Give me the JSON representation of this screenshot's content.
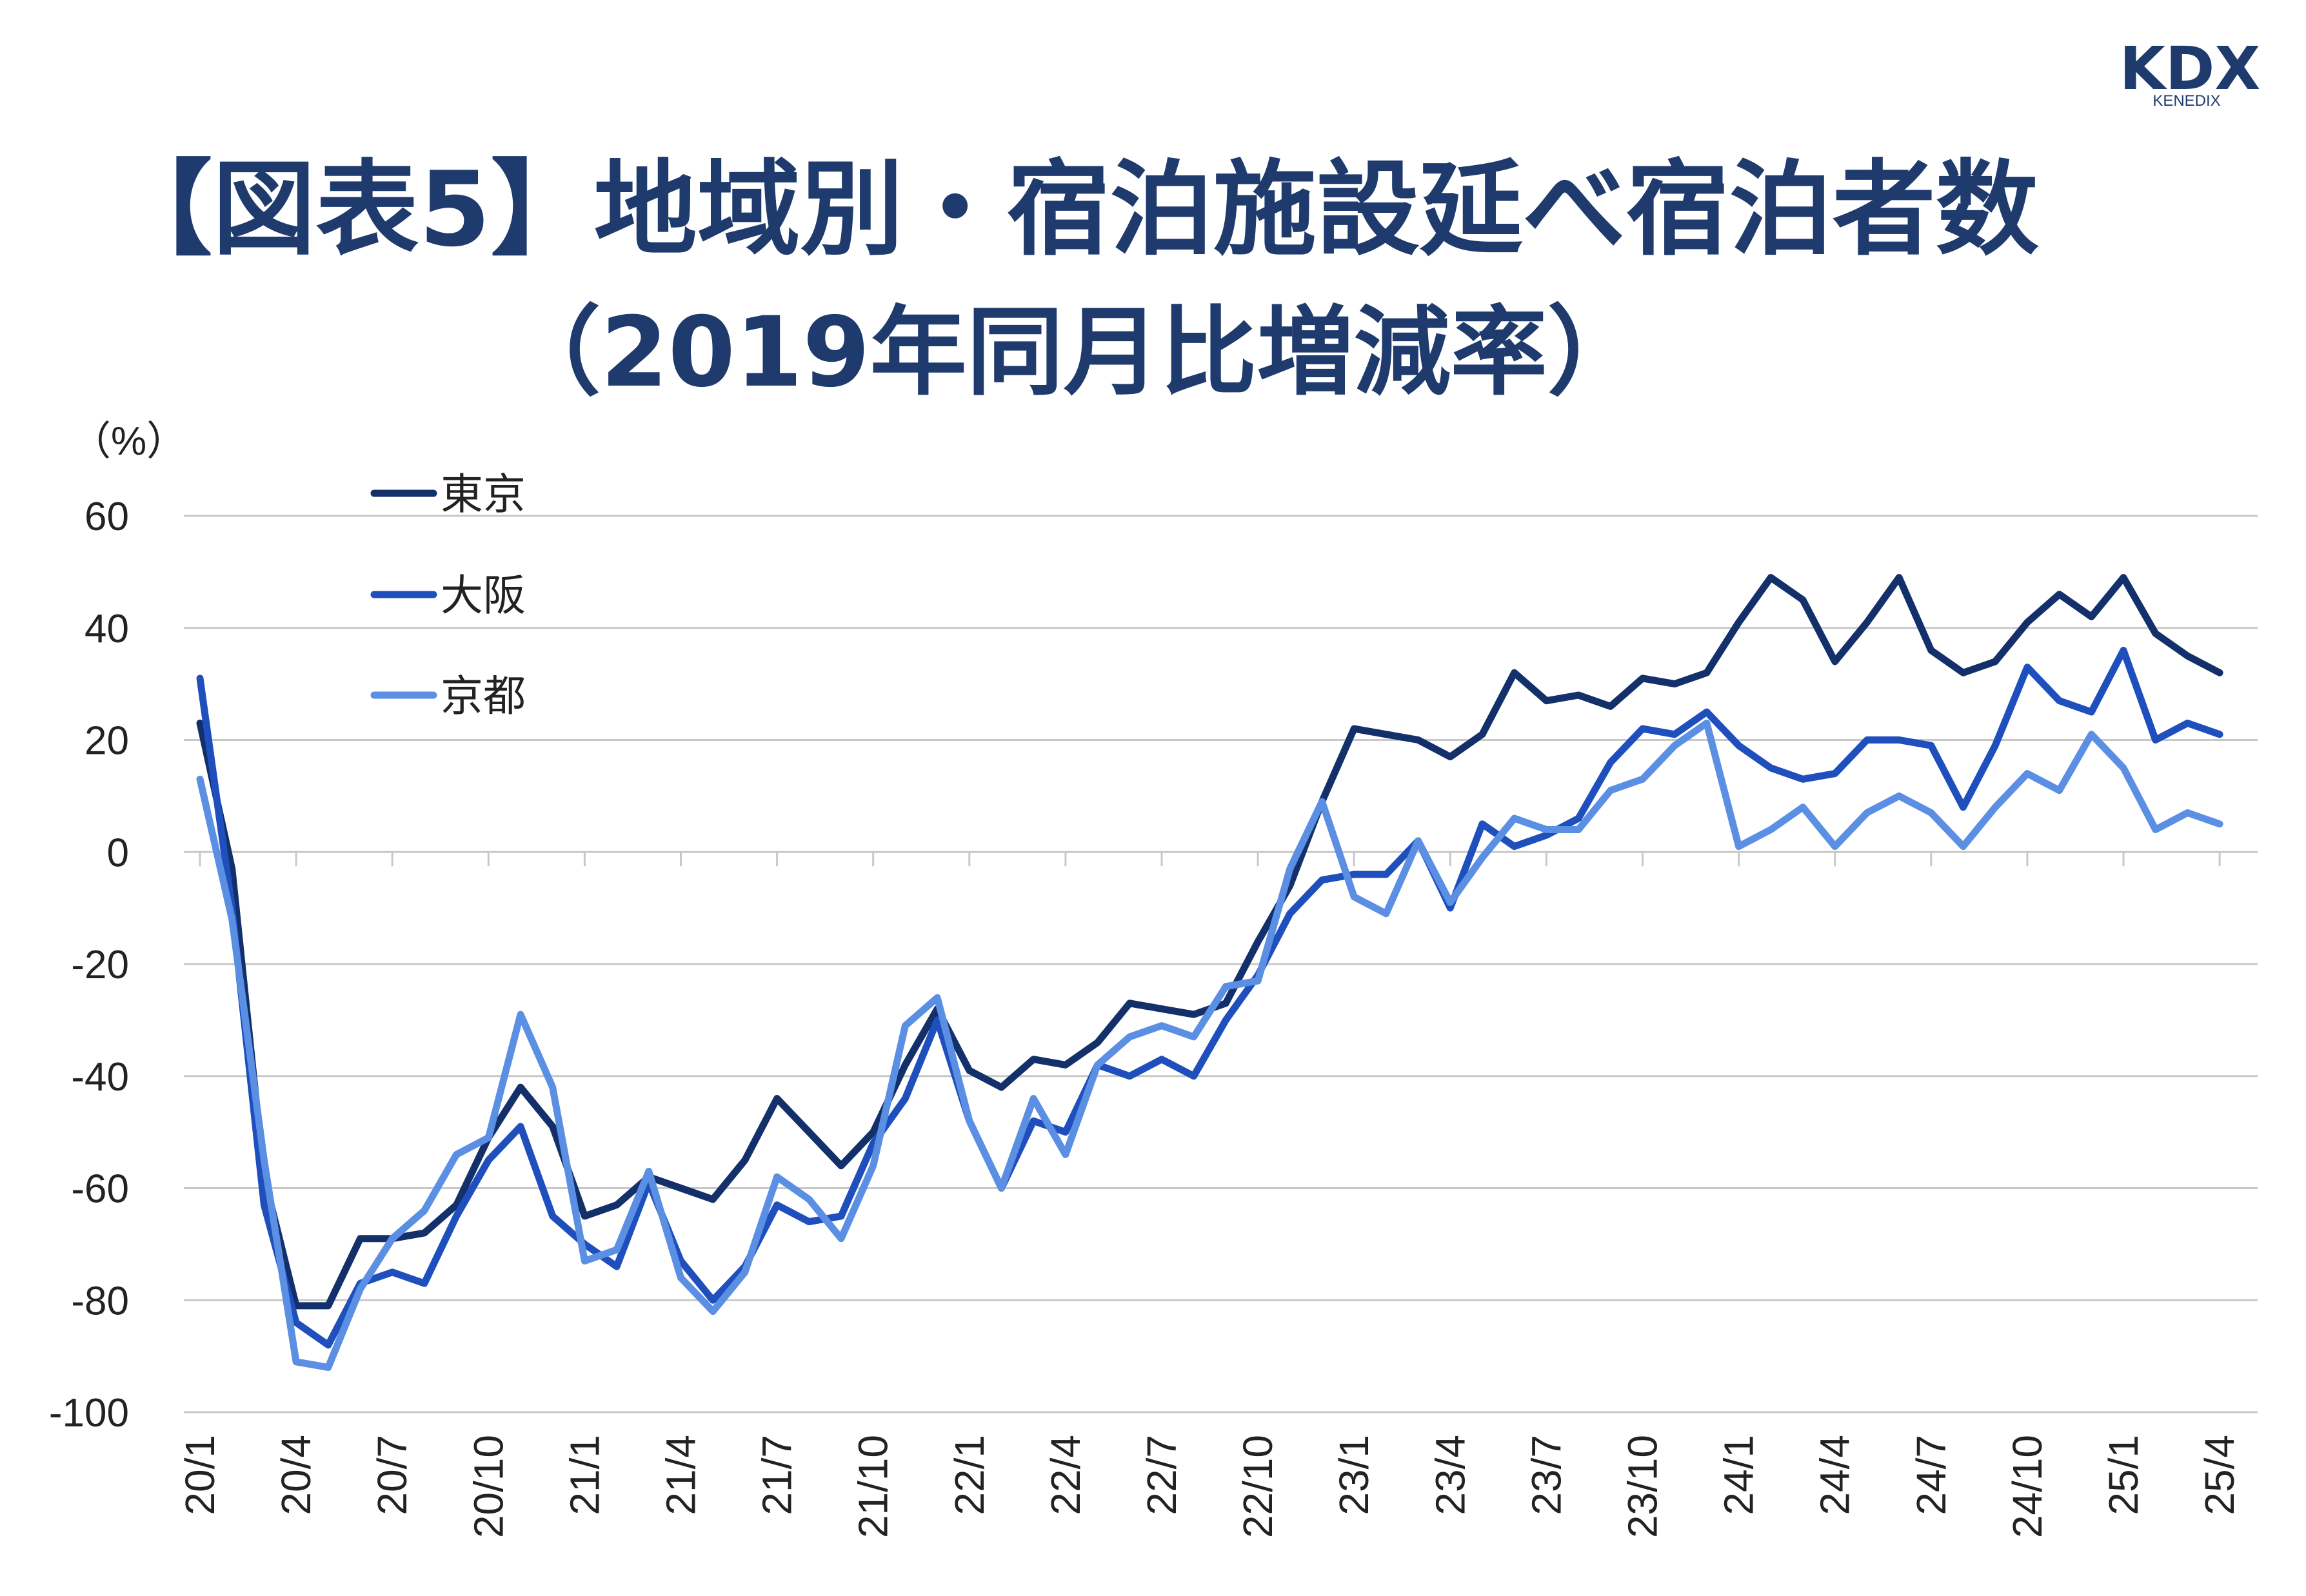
{
  "title_line1": "【図表5】地域別・宿泊施設延べ宿泊者数",
  "title_line2": "（2019年同月比増減率）",
  "logo": {
    "main": "KDX",
    "sub": "KENEDIX",
    "color": "#1f3b6e"
  },
  "chart_data": {
    "type": "line",
    "unit_label": "（%）",
    "ylim": [
      -100,
      60
    ],
    "y_ticks": [
      60,
      40,
      20,
      0,
      -20,
      -40,
      -60,
      -80,
      -100
    ],
    "x_tick_labels": [
      "20/1",
      "20/4",
      "20/7",
      "20/10",
      "21/1",
      "21/4",
      "21/7",
      "21/10",
      "22/1",
      "22/4",
      "22/7",
      "22/10",
      "23/1",
      "23/4",
      "23/7",
      "23/10",
      "24/1",
      "24/4",
      "24/7",
      "24/10",
      "25/1",
      "25/4"
    ],
    "x": [
      "20/1",
      "20/2",
      "20/3",
      "20/4",
      "20/5",
      "20/6",
      "20/7",
      "20/8",
      "20/9",
      "20/10",
      "20/11",
      "20/12",
      "21/1",
      "21/2",
      "21/3",
      "21/4",
      "21/5",
      "21/6",
      "21/7",
      "21/8",
      "21/9",
      "21/10",
      "21/11",
      "21/12",
      "22/1",
      "22/2",
      "22/3",
      "22/4",
      "22/5",
      "22/6",
      "22/7",
      "22/8",
      "22/9",
      "22/10",
      "22/11",
      "22/12",
      "23/1",
      "23/2",
      "23/3",
      "23/4",
      "23/5",
      "23/6",
      "23/7",
      "23/8",
      "23/9",
      "23/10",
      "23/11",
      "23/12",
      "24/1",
      "24/2",
      "24/3",
      "24/4",
      "24/5",
      "24/6",
      "24/7",
      "24/8",
      "24/9",
      "24/10",
      "24/11",
      "24/12",
      "25/1",
      "25/2",
      "25/3",
      "25/4"
    ],
    "grid": true,
    "legend_position": "top-left",
    "series": [
      {
        "name": "東京",
        "color": "#13306b",
        "values": [
          23,
          -3,
          -58,
          -81,
          -81,
          -69,
          -69,
          -68,
          -63,
          -51,
          -42,
          -49,
          -65,
          -63,
          -58,
          -60,
          -62,
          -55,
          -44,
          -50,
          -56,
          -50,
          -38,
          -28,
          -39,
          -42,
          -37,
          -38,
          -34,
          -27,
          -28,
          -29,
          -27,
          -16,
          -6,
          9,
          22,
          21,
          20,
          17,
          21,
          32,
          27,
          28,
          26,
          31,
          30,
          32,
          41,
          49,
          45,
          34,
          41,
          49,
          36,
          32,
          34,
          41,
          46,
          42,
          49,
          39,
          35,
          32
        ]
      },
      {
        "name": "大阪",
        "color": "#1e4fbd",
        "values": [
          31,
          -10,
          -63,
          -84,
          -88,
          -77,
          -75,
          -77,
          -65,
          -55,
          -49,
          -65,
          -70,
          -74,
          -59,
          -73,
          -80,
          -74,
          -63,
          -66,
          -65,
          -52,
          -44,
          -30,
          -48,
          -60,
          -48,
          -50,
          -38,
          -40,
          -37,
          -40,
          -30,
          -22,
          -11,
          -5,
          -4,
          -4,
          2,
          -10,
          5,
          1,
          3,
          6,
          16,
          22,
          21,
          25,
          19,
          15,
          13,
          14,
          20,
          20,
          19,
          8,
          19,
          33,
          27,
          25,
          36,
          20,
          23,
          21
        ]
      },
      {
        "name": "京都",
        "color": "#5b8fe4",
        "values": [
          13,
          -12,
          -55,
          -91,
          -92,
          -78,
          -69,
          -64,
          -54,
          -51,
          -29,
          -42,
          -73,
          -71,
          -57,
          -76,
          -82,
          -75,
          -58,
          -62,
          -69,
          -56,
          -31,
          -26,
          -48,
          -60,
          -44,
          -54,
          -38,
          -33,
          -31,
          -33,
          -24,
          -23,
          -3,
          9,
          -8,
          -11,
          2,
          -9,
          -1,
          6,
          4,
          4,
          11,
          13,
          19,
          23,
          1,
          4,
          8,
          1,
          7,
          10,
          7,
          1,
          8,
          14,
          11,
          21,
          15,
          4,
          7,
          5
        ]
      }
    ]
  }
}
